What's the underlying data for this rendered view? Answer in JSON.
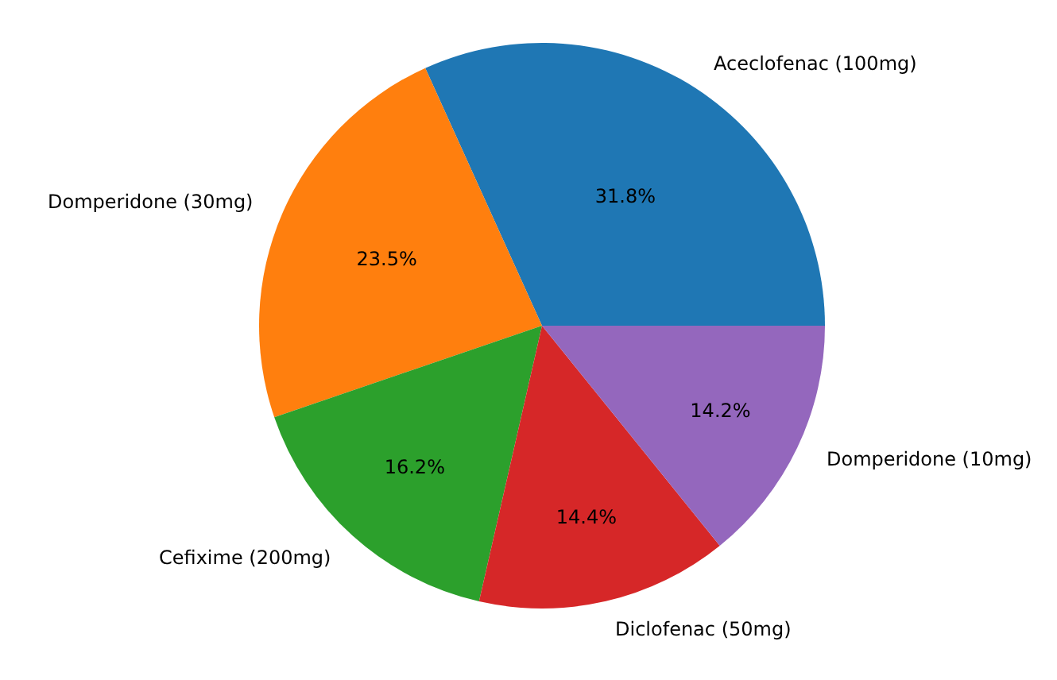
{
  "chart_data": {
    "type": "pie",
    "categories": [
      "Aceclofenac (100mg)",
      "Domperidone (30mg)",
      "Cefixime (200mg)",
      "Diclofenac (50mg)",
      "Domperidone (10mg)"
    ],
    "values": [
      31.8,
      23.5,
      16.2,
      14.4,
      14.2
    ],
    "value_labels": [
      "31.8%",
      "23.5%",
      "16.2%",
      "14.4%",
      "14.2%"
    ],
    "colors": [
      "#1f77b4",
      "#ff7f0e",
      "#2ca02c",
      "#d62728",
      "#9467bd"
    ],
    "legend": false
  }
}
